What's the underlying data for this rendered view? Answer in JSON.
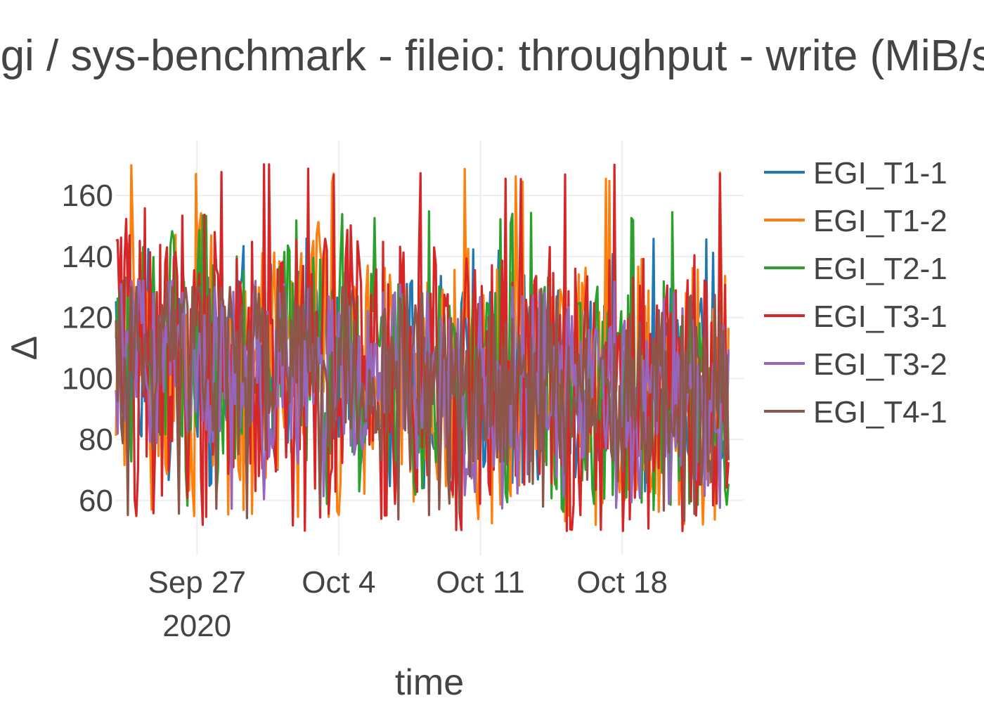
{
  "chart_data": {
    "type": "line",
    "title": "egi / sys-benchmark - fileio: throughput - write (MiB/s)",
    "xlabel": "time",
    "ylabel": "Δ",
    "x_axis": {
      "type": "date",
      "range": [
        "2020-09-23",
        "2020-10-24"
      ],
      "ticks": [
        {
          "date": "2020-09-27",
          "label": "Sep 27",
          "sublabel": "2020"
        },
        {
          "date": "2020-10-04",
          "label": "Oct 4",
          "sublabel": ""
        },
        {
          "date": "2020-10-11",
          "label": "Oct 11",
          "sublabel": ""
        },
        {
          "date": "2020-10-18",
          "label": "Oct 18",
          "sublabel": ""
        }
      ]
    },
    "y_axis": {
      "range": [
        42,
        178
      ],
      "ticks": [
        60,
        80,
        100,
        120,
        140,
        160
      ]
    },
    "grid": true,
    "legend": {
      "position": "right"
    },
    "series": [
      {
        "name": "EGI_T1-1",
        "color": "#1f77b4",
        "min": 62,
        "max": 146,
        "phase": 0.4,
        "points": []
      },
      {
        "name": "EGI_T1-2",
        "color": "#ff7f0e",
        "min": 52,
        "max": 170,
        "phase": 1.3,
        "points": []
      },
      {
        "name": "EGI_T2-1",
        "color": "#2ca02c",
        "min": 56,
        "max": 155,
        "phase": 2.1,
        "points": []
      },
      {
        "name": "EGI_T3-1",
        "color": "#d62728",
        "min": 50,
        "max": 171,
        "phase": 0.9,
        "points": []
      },
      {
        "name": "EGI_T3-2",
        "color": "#9467bd",
        "min": 57,
        "max": 132,
        "phase": 3.0,
        "points": []
      },
      {
        "name": "EGI_T4-1",
        "color": "#8c564b",
        "min": 53,
        "max": 130,
        "phase": 2.6,
        "points": []
      }
    ]
  }
}
